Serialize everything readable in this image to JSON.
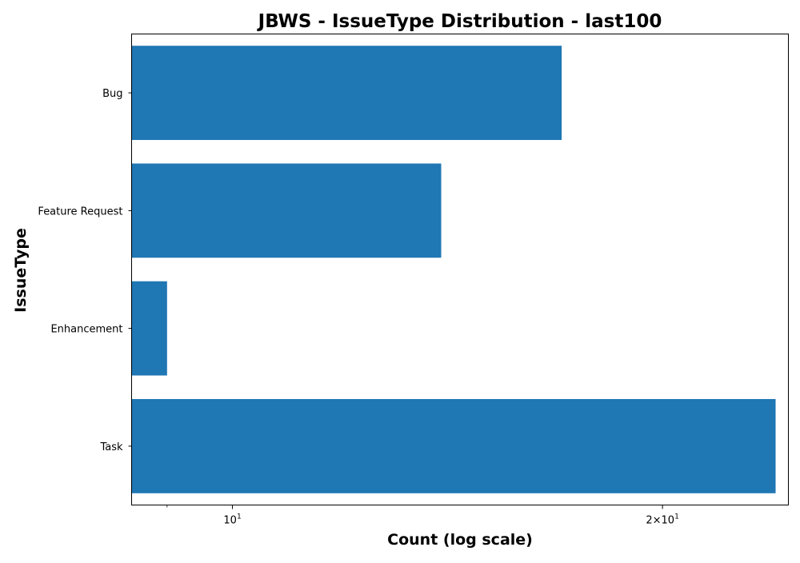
{
  "chart_data": {
    "type": "bar",
    "orientation": "horizontal",
    "title": "JBWS - IssueType Distribution - last100",
    "xlabel": "Count (log scale)",
    "ylabel": "IssueType",
    "x_scale": "log",
    "xlim": [
      8.5,
      24.5
    ],
    "categories": [
      "Bug",
      "Feature Request",
      "Enhancement",
      "Task"
    ],
    "values": [
      17,
      14,
      9,
      24
    ],
    "x_major_ticks": [
      {
        "value": 10,
        "base": "10",
        "exp": "1"
      },
      {
        "value": 20,
        "base": "2×10",
        "exp": "1"
      }
    ],
    "x_minor_ticks": [
      9
    ],
    "bar_color": "#1f77b4",
    "grid": false,
    "legend": "none"
  }
}
